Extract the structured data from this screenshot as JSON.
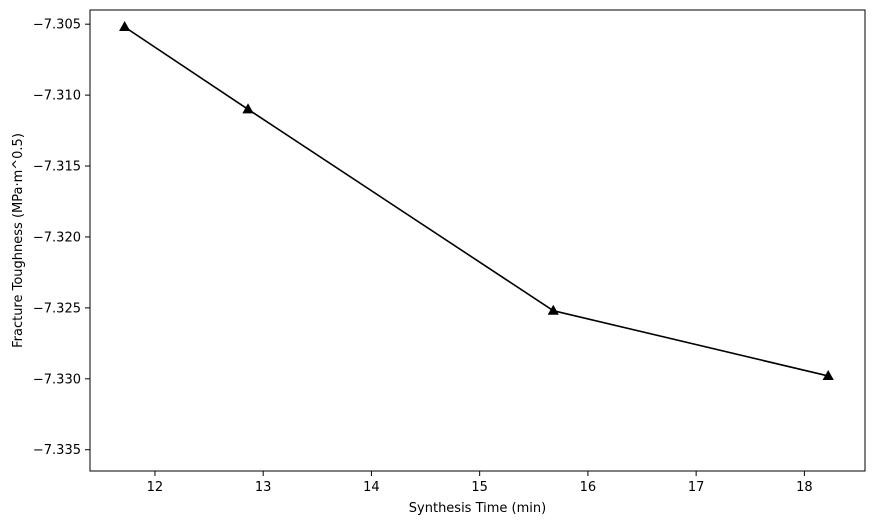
{
  "chart_data": {
    "type": "line",
    "title": "",
    "xlabel": "Synthesis Time (min)",
    "ylabel": "Fracture Toughness (MPa·m^0.5)",
    "xlim": [
      11.4,
      18.56
    ],
    "ylim": [
      -7.3365,
      -7.304
    ],
    "xticks": [
      12,
      13,
      14,
      15,
      16,
      17,
      18
    ],
    "xtick_labels": [
      "12",
      "13",
      "14",
      "15",
      "16",
      "17",
      "18"
    ],
    "yticks": [
      -7.305,
      -7.31,
      -7.315,
      -7.32,
      -7.325,
      -7.33,
      -7.335
    ],
    "ytick_labels": [
      "−7.305",
      "−7.310",
      "−7.315",
      "−7.320",
      "−7.325",
      "−7.330",
      "−7.335"
    ],
    "grid": false,
    "series": [
      {
        "x": [
          11.72,
          12.86,
          15.68,
          18.22
        ],
        "y": [
          -7.3052,
          -7.311,
          -7.3252,
          -7.3298
        ],
        "color": "#000000",
        "marker": "triangle-up"
      }
    ]
  }
}
